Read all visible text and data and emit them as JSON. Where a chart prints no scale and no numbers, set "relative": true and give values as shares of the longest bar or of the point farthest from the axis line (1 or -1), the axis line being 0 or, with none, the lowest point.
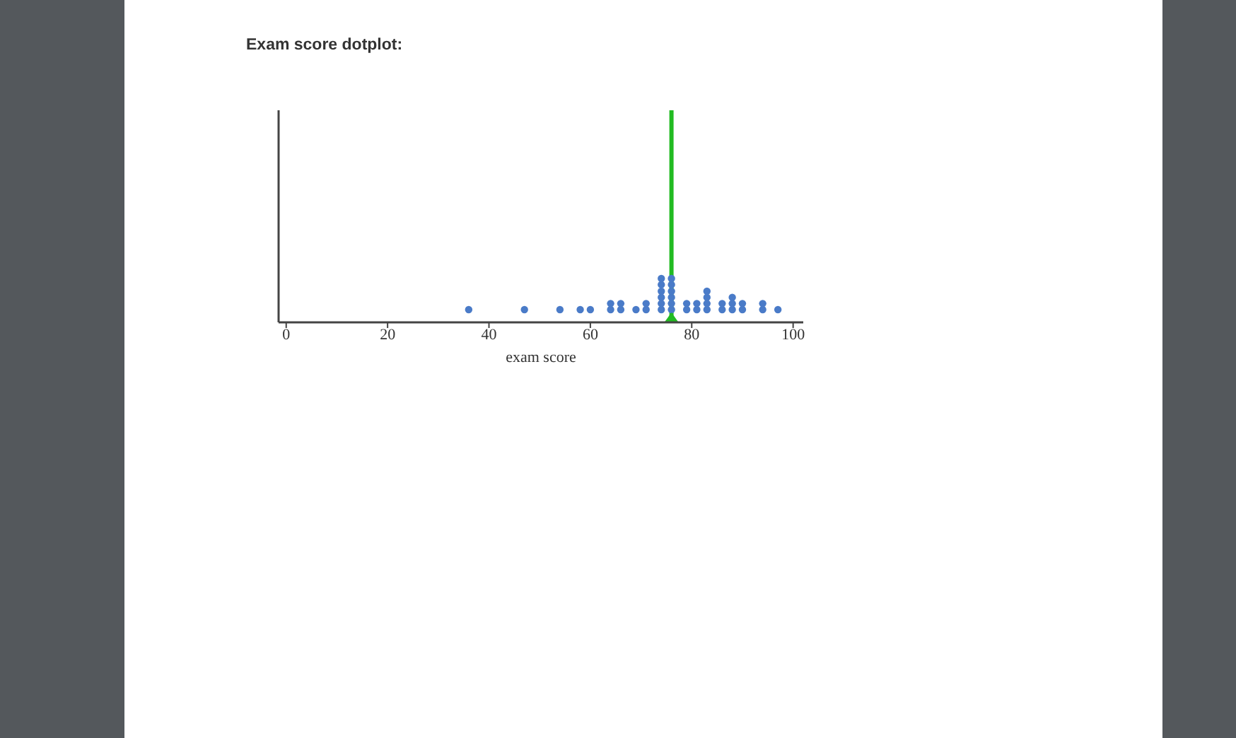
{
  "chart_data": {
    "type": "scatter",
    "title": "Exam score dotplot:",
    "xlabel": "exam score",
    "xlim": [
      -1.5,
      102
    ],
    "xticks": [
      0,
      20,
      40,
      60,
      80,
      100
    ],
    "relative": true,
    "tick_labels": "x",
    "marker": "circle",
    "grid": false,
    "ref_lines": [
      {
        "axis": "x",
        "value": 76,
        "color": "#22bb22"
      }
    ],
    "series": [
      {
        "color": "#4a7bc8",
        "x": [
          36,
          47,
          54,
          58,
          60,
          64,
          64,
          66,
          66,
          69,
          71,
          71,
          74,
          74,
          74,
          74,
          74,
          74,
          76,
          76,
          76,
          76,
          76,
          76,
          79,
          79,
          81,
          81,
          83,
          83,
          83,
          83,
          86,
          86,
          88,
          88,
          88,
          90,
          90,
          94,
          94,
          97
        ],
        "values": [
          0.29,
          0.29,
          0.29,
          0.29,
          0.29,
          0.29,
          0.43,
          0.29,
          0.43,
          0.29,
          0.29,
          0.43,
          0.29,
          0.43,
          0.57,
          0.71,
          0.86,
          1,
          0.29,
          0.43,
          0.57,
          0.71,
          0.86,
          1,
          0.29,
          0.43,
          0.29,
          0.43,
          0.29,
          0.43,
          0.57,
          0.71,
          0.29,
          0.43,
          0.29,
          0.43,
          0.57,
          0.29,
          0.43,
          0.29,
          0.43,
          0.29
        ]
      }
    ]
  }
}
